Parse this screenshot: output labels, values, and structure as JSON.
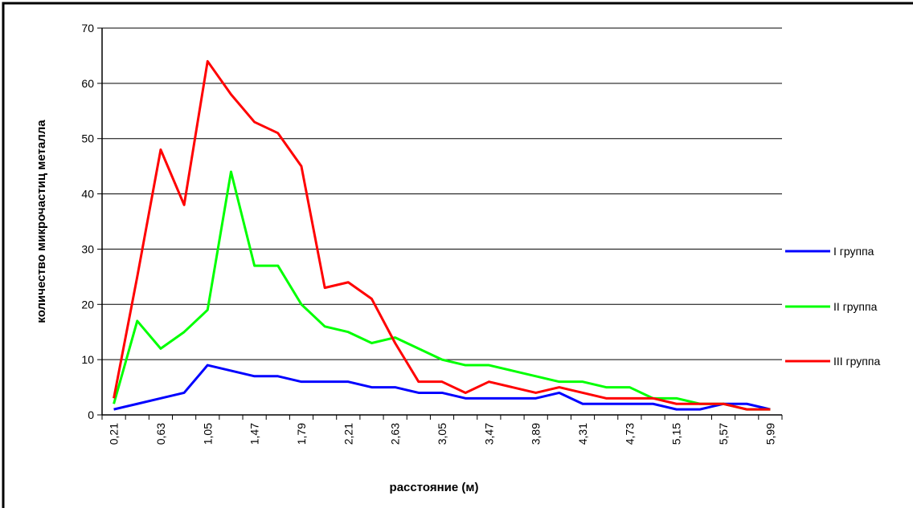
{
  "chart_data": {
    "type": "line",
    "xlabel": "расстояние (м)",
    "ylabel": "количество микрочастиц металла",
    "categories": [
      "0,21",
      null,
      "0,63",
      null,
      "1,05",
      null,
      "1,47",
      null,
      "1,79",
      null,
      "2,21",
      null,
      "2,63",
      null,
      "3,05",
      null,
      "3,47",
      null,
      "3,89",
      null,
      "4,31",
      null,
      "4,73",
      null,
      "5,15",
      null,
      "5,57",
      null,
      "5,99"
    ],
    "series": [
      {
        "name": "I группа",
        "color": "#0000ff",
        "values": [
          1,
          2,
          3,
          4,
          9,
          8,
          7,
          7,
          6,
          6,
          6,
          5,
          5,
          4,
          4,
          3,
          3,
          3,
          3,
          4,
          2,
          2,
          2,
          2,
          1,
          1,
          2,
          2,
          1
        ]
      },
      {
        "name": "II группа",
        "color": "#00ff00",
        "values": [
          2,
          17,
          12,
          15,
          19,
          44,
          27,
          27,
          20,
          16,
          15,
          13,
          14,
          12,
          10,
          9,
          9,
          8,
          7,
          6,
          6,
          5,
          5,
          3,
          3,
          2,
          2,
          1,
          1
        ]
      },
      {
        "name": "III группа",
        "color": "#ff0000",
        "values": [
          3,
          25,
          48,
          38,
          64,
          58,
          53,
          51,
          45,
          23,
          24,
          21,
          13,
          6,
          6,
          4,
          6,
          5,
          4,
          5,
          4,
          3,
          3,
          3,
          2,
          2,
          2,
          1,
          1
        ]
      }
    ],
    "ylim": [
      0,
      70
    ],
    "yticks": [
      0,
      10,
      20,
      30,
      40,
      50,
      60,
      70
    ],
    "grid": true,
    "legend": "right"
  }
}
